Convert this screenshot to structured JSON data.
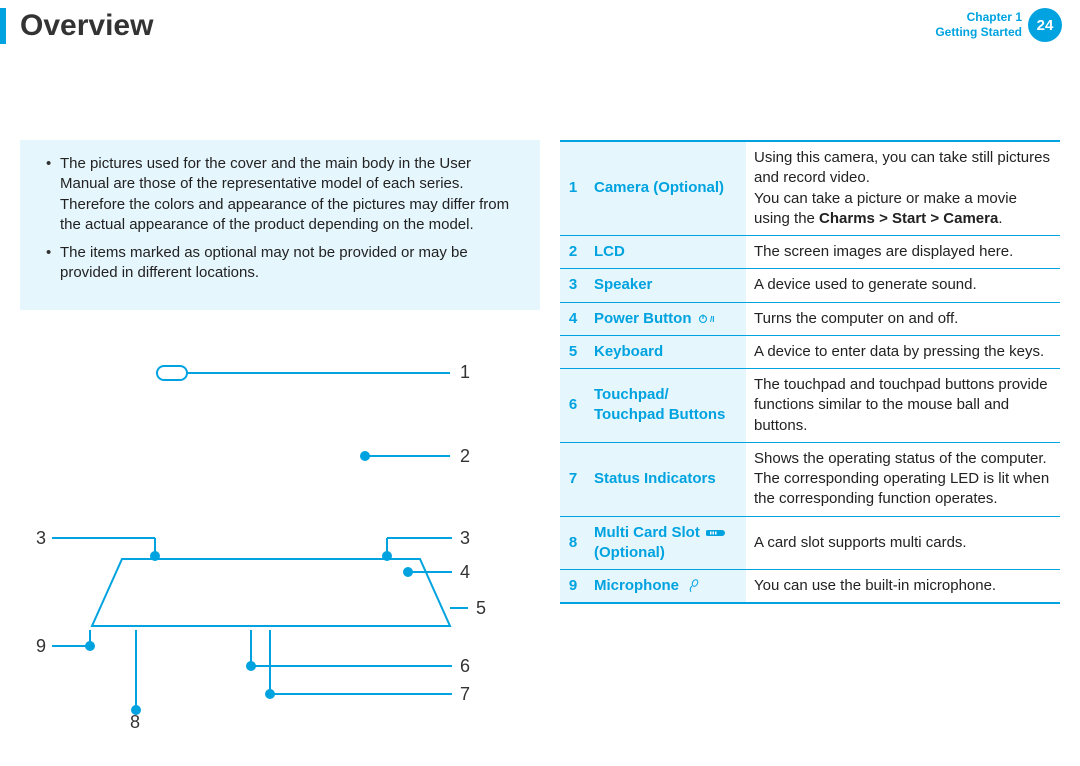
{
  "header": {
    "title": "Overview",
    "chapter_line1": "Chapter 1",
    "chapter_line2": "Getting Started",
    "page_number": "24"
  },
  "notes": {
    "items": [
      "The pictures used for the cover and the main body in the User Manual are those of the representative model of each series. Therefore the colors and appearance of the pictures may differ from the actual appearance of the product depending on the model.",
      "The items marked as optional may not be provided or may be provided in different locations."
    ]
  },
  "diagram": {
    "stroke": "#00a3e0",
    "label_color": "#333333",
    "callouts": [
      "1",
      "2",
      "3",
      "3",
      "4",
      "5",
      "6",
      "7",
      "8",
      "9"
    ]
  },
  "table": {
    "rows": [
      {
        "num": "1",
        "name": "Camera (Optional)",
        "desc_html": "Using this camera, you can take still pictures and record video.<br>You can take a picture or make a movie using the <b>Charms &gt; Start &gt; Camera</b>."
      },
      {
        "num": "2",
        "name": "LCD",
        "desc_html": "The screen images are displayed here."
      },
      {
        "num": "3",
        "name": "Speaker",
        "desc_html": "A device used to generate sound."
      },
      {
        "num": "4",
        "name": "Power Button",
        "icon": "power",
        "desc_html": "Turns the computer on and off."
      },
      {
        "num": "5",
        "name": "Keyboard",
        "desc_html": "A device to enter data by pressing the keys."
      },
      {
        "num": "6",
        "name": "Touchpad/<br>Touchpad Buttons",
        "desc_html": "The touchpad and touchpad buttons provide functions similar to the mouse ball and buttons."
      },
      {
        "num": "7",
        "name": "Status Indicators",
        "desc_html": "Shows the operating status of the computer. The corresponding operating LED is lit when the corresponding function operates."
      },
      {
        "num": "8",
        "name": "Multi Card Slot",
        "name_line2": "(Optional)",
        "icon": "sd",
        "desc_html": "A card slot supports multi cards."
      },
      {
        "num": "9",
        "name": "Microphone",
        "icon": "mic",
        "desc_html": "You can use the built-in microphone."
      }
    ]
  },
  "colors": {
    "accent": "#00a3e0",
    "accent_bg": "#e6f6fd",
    "text": "#222222"
  }
}
